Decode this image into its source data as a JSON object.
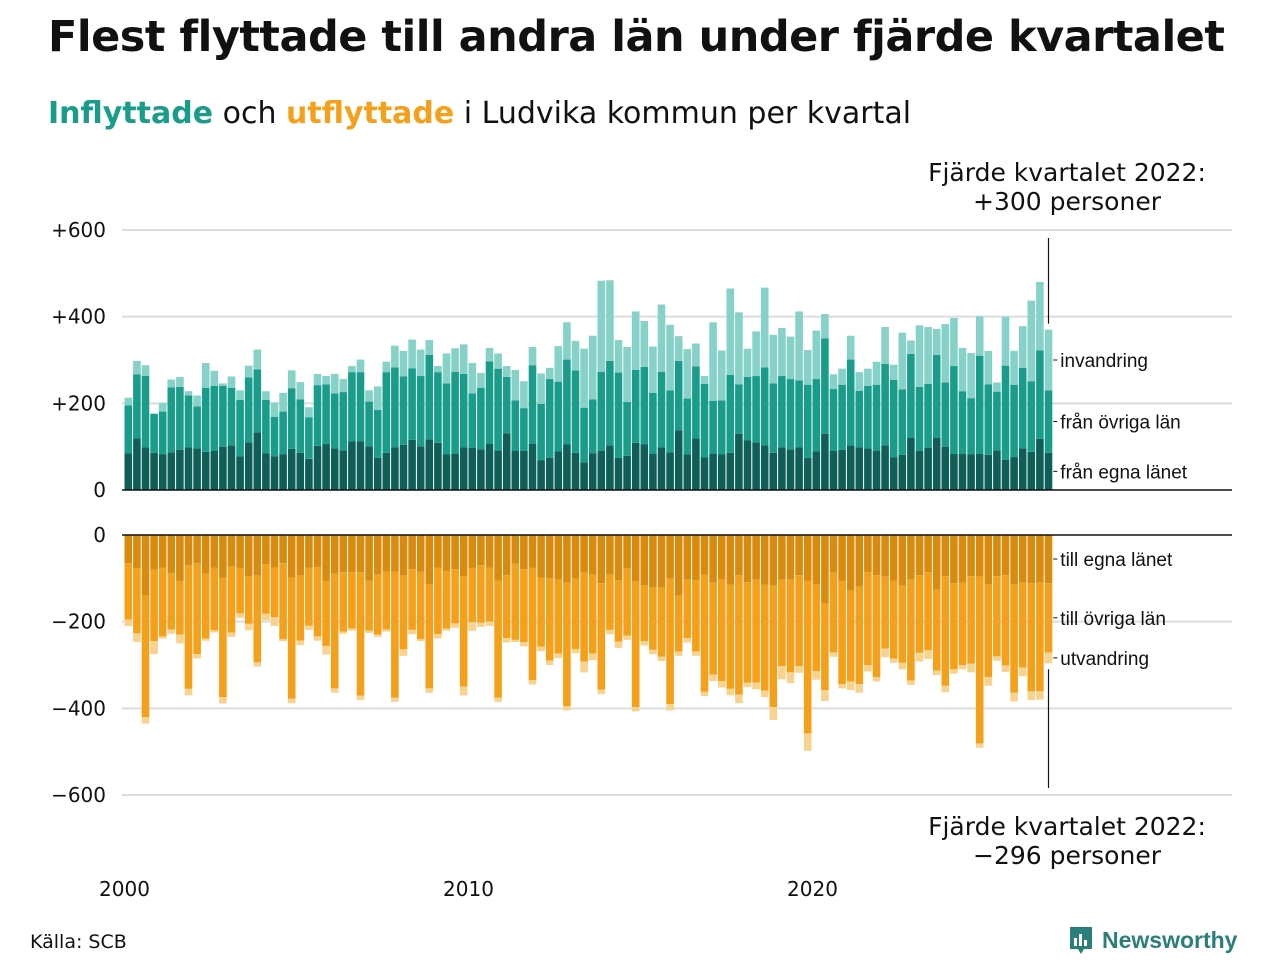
{
  "title": "Flest flyttade till andra län under fjärde kvartalet",
  "subtitle": {
    "inflyttade": "Inflyttade",
    "och": " och ",
    "utflyttade": "utflyttade",
    "rest": " i Ludvika kommun per kvartal"
  },
  "annotation_top": {
    "line1": "Fjärde kvartalet 2022:",
    "line2": "+300 personer"
  },
  "annotation_bottom": {
    "line1": "Fjärde kvartalet 2022:",
    "line2": "−296 personer"
  },
  "source": "Källa: SCB",
  "brand": {
    "name": "Newsworthy",
    "icon": "bar-chart-logo-icon"
  },
  "colors": {
    "in_egna": "#0f5e57",
    "in_ovriga": "#1a9c8b",
    "in_invandring": "#86d1c8",
    "ut_egna": "#d98b0f",
    "ut_ovriga": "#f5a01b",
    "ut_utvandring": "#f8d390",
    "grid": "#dddddd",
    "axis": "#111111"
  },
  "chart_data": [
    {
      "type": "bar",
      "stacked": true,
      "name": "Inflyttade",
      "x_start": "2000 Q1",
      "x_ticks": [
        "2000",
        "2010",
        "2020"
      ],
      "y_ticks": [
        "+600",
        "+400",
        "+200",
        "0"
      ],
      "ylim": [
        0,
        600
      ],
      "series": [
        {
          "name": "från egna länet",
          "values": [
            85,
            119,
            98,
            86,
            82,
            87,
            93,
            98,
            96,
            88,
            90,
            100,
            103,
            78,
            110,
            133,
            85,
            78,
            82,
            95,
            86,
            72,
            102,
            106,
            96,
            91,
            112,
            112,
            101,
            74,
            86,
            98,
            104,
            116,
            101,
            117,
            109,
            82,
            84,
            98,
            97,
            94,
            107,
            91,
            131,
            90,
            90,
            107,
            69,
            74,
            89,
            105,
            86,
            64,
            85,
            90,
            103,
            74,
            79,
            109,
            105,
            84,
            98,
            87,
            138,
            82,
            119,
            75,
            84,
            82,
            86,
            130,
            115,
            110,
            103,
            86,
            98,
            94,
            98,
            74,
            89,
            130,
            90,
            93,
            103,
            98,
            96,
            90,
            103,
            75,
            81,
            120,
            90,
            97,
            120,
            100,
            83,
            83,
            82,
            83,
            81,
            91,
            70,
            76,
            96,
            88,
            118,
            86
          ]
        },
        {
          "name": "från övriga län",
          "values": [
            110,
            148,
            165,
            90,
            99,
            150,
            145,
            120,
            97,
            148,
            150,
            140,
            133,
            130,
            150,
            145,
            123,
            91,
            99,
            140,
            123,
            96,
            140,
            138,
            127,
            135,
            160,
            160,
            103,
            111,
            186,
            185,
            158,
            165,
            162,
            195,
            163,
            164,
            189,
            170,
            126,
            142,
            190,
            189,
            130,
            117,
            99,
            181,
            130,
            182,
            161,
            196,
            190,
            126,
            124,
            183,
            195,
            197,
            124,
            168,
            179,
            140,
            175,
            143,
            160,
            129,
            166,
            170,
            122,
            125,
            180,
            114,
            146,
            153,
            180,
            160,
            165,
            162,
            155,
            169,
            167,
            220,
            143,
            150,
            198,
            131,
            144,
            153,
            188,
            179,
            151,
            194,
            148,
            148,
            192,
            148,
            203,
            145,
            130,
            227,
            163,
            136,
            217,
            167,
            186,
            163,
            204,
            144
          ]
        },
        {
          "name": "invandring",
          "values": [
            18,
            31,
            25,
            0,
            20,
            18,
            23,
            10,
            25,
            57,
            35,
            6,
            26,
            22,
            27,
            46,
            20,
            33,
            43,
            41,
            40,
            23,
            26,
            19,
            45,
            30,
            14,
            29,
            26,
            54,
            24,
            50,
            59,
            66,
            61,
            34,
            14,
            69,
            54,
            68,
            70,
            34,
            31,
            35,
            25,
            70,
            62,
            42,
            70,
            26,
            82,
            86,
            68,
            136,
            147,
            210,
            186,
            75,
            127,
            135,
            106,
            107,
            155,
            151,
            57,
            114,
            53,
            18,
            181,
            115,
            199,
            166,
            65,
            103,
            184,
            112,
            111,
            98,
            159,
            80,
            112,
            56,
            34,
            37,
            55,
            43,
            40,
            53,
            85,
            35,
            131,
            31,
            142,
            131,
            60,
            135,
            111,
            100,
            104,
            91,
            77,
            21,
            113,
            78,
            96,
            186,
            158,
            140
          ]
        }
      ]
    },
    {
      "type": "bar",
      "stacked": true,
      "name": "Utflyttade",
      "x_start": "2000 Q1",
      "y_ticks": [
        "0",
        "−200",
        "−400",
        "−600"
      ],
      "ylim": [
        -600,
        0
      ],
      "series": [
        {
          "name": "till egna länet",
          "values": [
            -65,
            -77,
            -140,
            -80,
            -75,
            -88,
            -105,
            -70,
            -65,
            -89,
            -75,
            -99,
            -73,
            -76,
            -95,
            -94,
            -67,
            -75,
            -65,
            -98,
            -94,
            -75,
            -74,
            -106,
            -89,
            -86,
            -86,
            -86,
            -105,
            -91,
            -85,
            -85,
            -94,
            -79,
            -85,
            -114,
            -75,
            -83,
            -79,
            -95,
            -76,
            -70,
            -75,
            -105,
            -93,
            -66,
            -79,
            -76,
            -98,
            -100,
            -103,
            -110,
            -101,
            -87,
            -92,
            -111,
            -91,
            -104,
            -78,
            -107,
            -117,
            -121,
            -121,
            -101,
            -140,
            -103,
            -104,
            -92,
            -110,
            -103,
            -115,
            -93,
            -109,
            -103,
            -115,
            -117,
            -103,
            -103,
            -93,
            -106,
            -115,
            -158,
            -87,
            -106,
            -128,
            -119,
            -86,
            -93,
            -96,
            -105,
            -117,
            -103,
            -93,
            -86,
            -126,
            -95,
            -111,
            -110,
            -95,
            -96,
            -114,
            -95,
            -93,
            -114,
            -110,
            -111,
            -110,
            -111
          ]
        },
        {
          "name": "till övriga län",
          "values": [
            -130,
            -150,
            -280,
            -165,
            -159,
            -130,
            -125,
            -285,
            -210,
            -150,
            -145,
            -275,
            -152,
            -105,
            -110,
            -200,
            -115,
            -115,
            -175,
            -280,
            -150,
            -134,
            -160,
            -150,
            -265,
            -137,
            -130,
            -285,
            -116,
            -139,
            -133,
            -290,
            -170,
            -140,
            -155,
            -240,
            -154,
            -133,
            -125,
            -255,
            -125,
            -132,
            -125,
            -270,
            -145,
            -176,
            -168,
            -259,
            -160,
            -190,
            -171,
            -285,
            -162,
            -205,
            -182,
            -246,
            -128,
            -142,
            -154,
            -290,
            -128,
            -144,
            -160,
            -289,
            -129,
            -135,
            -165,
            -270,
            -212,
            -234,
            -240,
            -275,
            -232,
            -238,
            -244,
            -280,
            -200,
            -214,
            -210,
            -352,
            -199,
            -200,
            -184,
            -238,
            -210,
            -225,
            -214,
            -235,
            -166,
            -180,
            -178,
            -233,
            -179,
            -180,
            -187,
            -253,
            -199,
            -190,
            -202,
            -385,
            -214,
            -185,
            -208,
            -250,
            -196,
            -250,
            -250,
            -160
          ]
        },
        {
          "name": "utvandring",
          "values": [
            -15,
            -20,
            -15,
            -30,
            -5,
            -10,
            -20,
            -15,
            -10,
            -5,
            -5,
            -15,
            -10,
            -10,
            -15,
            -10,
            -15,
            -20,
            -5,
            -10,
            -10,
            -10,
            -10,
            -20,
            -10,
            -5,
            -5,
            -10,
            -5,
            -5,
            -5,
            -10,
            -15,
            -10,
            -5,
            -10,
            -10,
            -5,
            -10,
            -20,
            -20,
            -10,
            -10,
            -10,
            -10,
            -5,
            -10,
            -10,
            -10,
            -10,
            -10,
            -10,
            -10,
            -25,
            -15,
            -10,
            -10,
            -15,
            -10,
            -10,
            -10,
            -10,
            -10,
            -15,
            -10,
            -10,
            -10,
            -10,
            -15,
            -15,
            -15,
            -20,
            -10,
            -15,
            -15,
            -30,
            -30,
            -25,
            -15,
            -40,
            -20,
            -25,
            -10,
            -10,
            -20,
            -20,
            -15,
            -10,
            -20,
            -10,
            -15,
            -10,
            -20,
            -20,
            -10,
            -15,
            -10,
            -10,
            -20,
            -10,
            -20,
            -10,
            -15,
            -20,
            -20,
            -20,
            -20,
            -25
          ]
        }
      ]
    }
  ]
}
